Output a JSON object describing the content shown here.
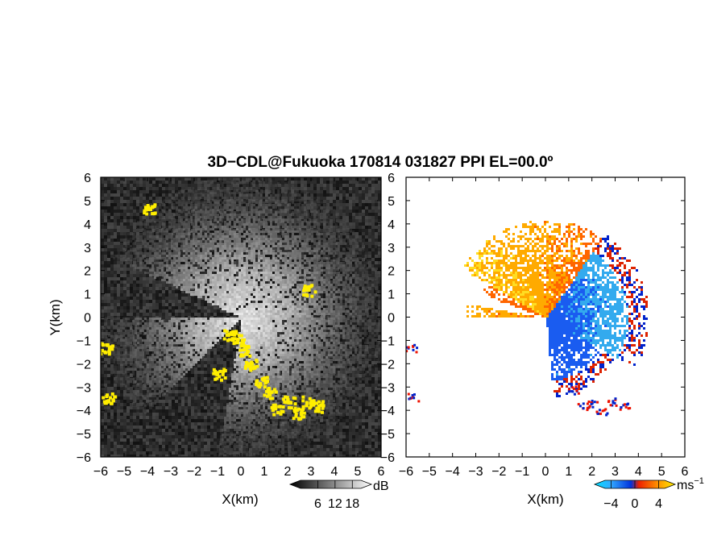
{
  "title": "3D−CDL@Fukuoka 170814 031827 PPI EL=00.0º",
  "colors": {
    "background": "#ffffff",
    "left_panel_bg": "#101010",
    "highlight": "#ffee00",
    "axis": "#000000"
  },
  "chart_data": [
    {
      "type": "heatmap",
      "name": "left-panel",
      "field": "SNR (grayscale), yellow = hard-target/clutter mask",
      "xlabel": "X(km)",
      "ylabel": "Y(km)",
      "xlim": [
        -6,
        6
      ],
      "ylim": [
        -6,
        6
      ],
      "xticks": [
        "−6",
        "−5",
        "−4",
        "−3",
        "−2",
        "−1",
        "0",
        "1",
        "2",
        "3",
        "4",
        "5",
        "6"
      ],
      "yticks": [
        "−6",
        "−5",
        "−4",
        "−3",
        "−2",
        "−1",
        "0",
        "1",
        "2",
        "3",
        "4",
        "5",
        "6"
      ],
      "colorbar": {
        "unit": "dB",
        "ticks": [
          "6",
          "12",
          "18"
        ],
        "range": [
          0,
          21
        ]
      },
      "yellow_mask": [
        {
          "x": -0.5,
          "y": -0.7
        },
        {
          "x": -0.2,
          "y": -0.9
        },
        {
          "x": 0.1,
          "y": -1.4
        },
        {
          "x": 0.4,
          "y": -2.0
        },
        {
          "x": 0.8,
          "y": -2.7
        },
        {
          "x": 1.2,
          "y": -3.2
        },
        {
          "x": 1.5,
          "y": -3.9
        },
        {
          "x": 2.0,
          "y": -3.6
        },
        {
          "x": 2.4,
          "y": -4.1
        },
        {
          "x": 2.8,
          "y": -3.6
        },
        {
          "x": 3.3,
          "y": -3.8
        },
        {
          "x": -5.8,
          "y": -1.3
        },
        {
          "x": -5.7,
          "y": -3.4
        },
        {
          "x": -4.0,
          "y": 4.7
        },
        {
          "x": 2.9,
          "y": 1.2
        },
        {
          "x": -1.0,
          "y": -2.4
        }
      ]
    },
    {
      "type": "heatmap",
      "name": "right-panel",
      "field": "Radial velocity",
      "xlabel": "X(km)",
      "xlim": [
        -6,
        6
      ],
      "ylim": [
        -6,
        6
      ],
      "xticks": [
        "−6",
        "−5",
        "−4",
        "−3",
        "−2",
        "−1",
        "0",
        "1",
        "2",
        "3",
        "4",
        "5",
        "6"
      ],
      "yticks": [
        "−6",
        "−5",
        "−4",
        "−3",
        "−2",
        "−1",
        "0",
        "1",
        "2",
        "3",
        "4",
        "5",
        "6"
      ],
      "colorbar": {
        "unit": "ms−1",
        "ticks": [
          "−4",
          "0",
          "4"
        ],
        "range": [
          -5,
          5
        ]
      },
      "velocity_regions": [
        {
          "region": "north-west sector",
          "velocity": 2.5
        },
        {
          "region": "west sector",
          "velocity": 3.5
        },
        {
          "region": "east / south-east sector",
          "velocity": -2.5
        },
        {
          "region": "far east fringe",
          "velocity": -4.5
        }
      ]
    }
  ]
}
